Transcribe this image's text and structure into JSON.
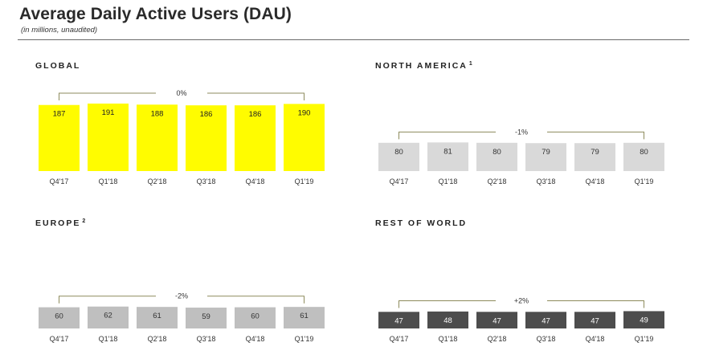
{
  "header": {
    "title": "Average Daily Active Users (DAU)",
    "subtitle": "(in millions, unaudited)"
  },
  "chart_data": [
    {
      "type": "bar",
      "title": "GLOBAL",
      "footnote": "",
      "categories": [
        "Q4'17",
        "Q1'18",
        "Q2'18",
        "Q3'18",
        "Q4'18",
        "Q1'19"
      ],
      "values": [
        187,
        191,
        188,
        186,
        186,
        190
      ],
      "change_label": "0%",
      "bar_color": "#FFFC00",
      "label_color": "#222222",
      "ylim": [
        0,
        200
      ]
    },
    {
      "type": "bar",
      "title": "NORTH AMERICA",
      "footnote": "1",
      "categories": [
        "Q4'17",
        "Q1'18",
        "Q2'18",
        "Q3'18",
        "Q4'18",
        "Q1'19"
      ],
      "values": [
        80,
        81,
        80,
        79,
        79,
        80
      ],
      "change_label": "-1%",
      "bar_color": "#D9D9D9",
      "label_color": "#333333",
      "ylim": [
        0,
        200
      ]
    },
    {
      "type": "bar",
      "title": "EUROPE",
      "footnote": "2",
      "categories": [
        "Q4'17",
        "Q1'18",
        "Q2'18",
        "Q3'18",
        "Q4'18",
        "Q1'19"
      ],
      "values": [
        60,
        62,
        61,
        59,
        60,
        61
      ],
      "change_label": "-2%",
      "bar_color": "#BFBFBF",
      "label_color": "#333333",
      "ylim": [
        0,
        200
      ]
    },
    {
      "type": "bar",
      "title": "REST OF WORLD",
      "footnote": "",
      "categories": [
        "Q4'17",
        "Q1'18",
        "Q2'18",
        "Q3'18",
        "Q4'18",
        "Q1'19"
      ],
      "values": [
        47,
        48,
        47,
        47,
        47,
        49
      ],
      "change_label": "+2%",
      "bar_color": "#4D4D4D",
      "label_color": "#FFFFFF",
      "ylim": [
        0,
        200
      ]
    }
  ]
}
